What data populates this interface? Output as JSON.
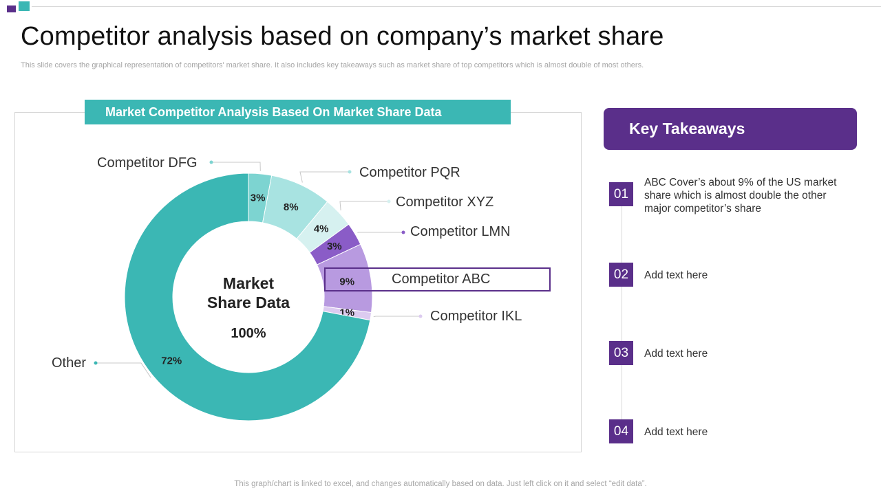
{
  "title": "Competitor analysis based on company’s market share",
  "subtitle": "This slide covers the graphical representation of competitors' market share. It also includes key takeaways such as market share of top competitors which is almost double of most others.",
  "chart_header": "Market Competitor Analysis Based On Market Share Data",
  "chart_data": {
    "type": "pie",
    "variant": "donut",
    "title": "Market Competitor Analysis Based On Market Share Data",
    "center_label_lines": [
      "Market",
      "Share Data"
    ],
    "center_value": "100%",
    "highlighted": "Competitor ABC",
    "slices": [
      {
        "name": "Competitor DFG",
        "value": 3,
        "label": "3%",
        "color": "#7dd4d1"
      },
      {
        "name": "Competitor PQR",
        "value": 8,
        "label": "8%",
        "color": "#a8e3e1"
      },
      {
        "name": "Competitor XYZ",
        "value": 4,
        "label": "4%",
        "color": "#d6f1f0"
      },
      {
        "name": "Competitor LMN",
        "value": 3,
        "label": "3%",
        "color": "#8a5cc7"
      },
      {
        "name": "Competitor ABC",
        "value": 9,
        "label": "9%",
        "color": "#b89ae0"
      },
      {
        "name": "Competitor IKL",
        "value": 1,
        "label": "1%",
        "color": "#dccbf0"
      },
      {
        "name": "Other",
        "value": 72,
        "label": "72%",
        "color": "#3bb7b4"
      }
    ]
  },
  "key_takeaways": {
    "title": "Key Takeaways",
    "items": [
      {
        "num": "01",
        "text": "ABC Cover’s about 9% of the US market share which is almost double the other major competitor’s share"
      },
      {
        "num": "02",
        "text": "Add text here"
      },
      {
        "num": "03",
        "text": "Add text here"
      },
      {
        "num": "04",
        "text": "Add text here"
      }
    ]
  },
  "footnote": "This graph/chart is linked to excel,  and changes automatically based on data. Just left click on it and select “edit data”.",
  "colors": {
    "teal": "#3bb7b4",
    "purple": "#5a2f8a"
  }
}
